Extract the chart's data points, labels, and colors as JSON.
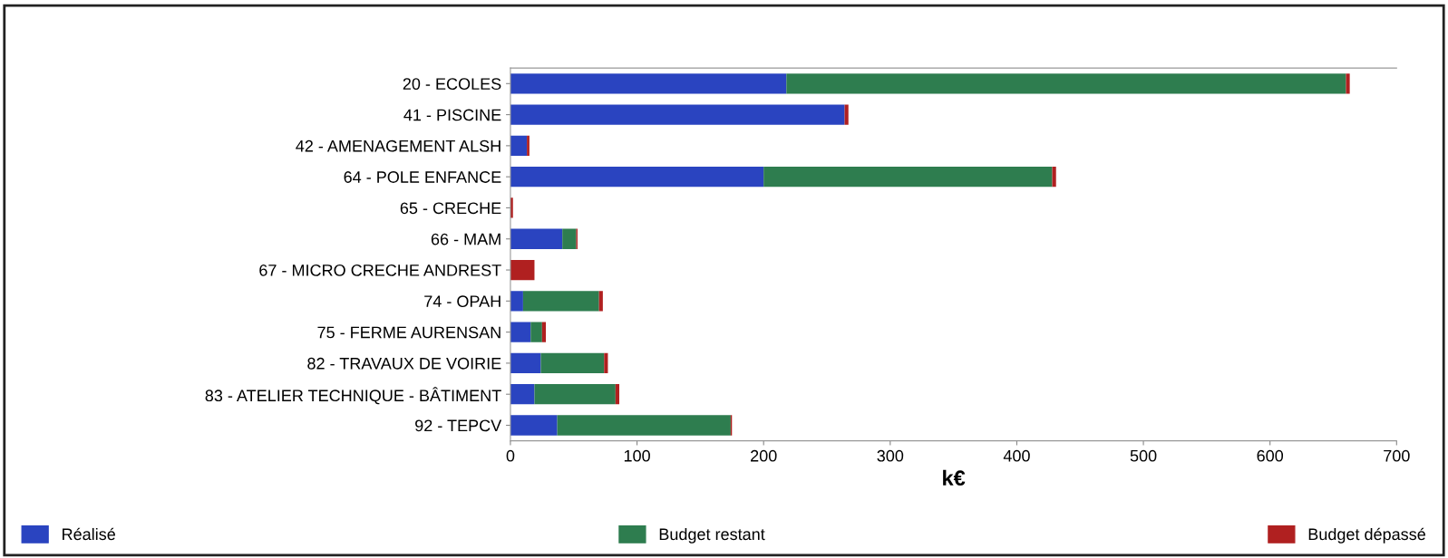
{
  "chart_data": {
    "type": "bar",
    "orientation": "horizontal",
    "stacked": true,
    "xlabel": "k€",
    "categories": [
      "20 - ECOLES",
      "41 - PISCINE",
      "42 - AMENAGEMENT ALSH",
      "64 - POLE ENFANCE",
      "65 - CRECHE",
      "66 - MAM",
      "67 - MICRO CRECHE ANDREST",
      "74 - OPAH",
      "75 - FERME AURENSAN",
      "82 - TRAVAUX DE VOIRIE",
      "83 - ATELIER TECHNIQUE - BÂTIMENT",
      "92 - TEPCV"
    ],
    "series": [
      {
        "name": "Réalisé",
        "color": "#2a44c0",
        "values": [
          218,
          264,
          13,
          200,
          0,
          41,
          0,
          10,
          16,
          24,
          19,
          37
        ]
      },
      {
        "name": "Budget restant",
        "color": "#2e7d4f",
        "values": [
          442,
          0,
          0,
          228,
          0,
          11,
          0,
          60,
          9,
          50,
          64,
          137
        ]
      },
      {
        "name": "Budget dépassé",
        "color": "#b02020",
        "values": [
          3,
          3,
          2,
          3,
          2,
          1,
          19,
          3,
          3,
          3,
          3,
          1
        ]
      }
    ],
    "xlim": [
      0,
      700
    ],
    "xticks": [
      0,
      100,
      200,
      300,
      400,
      500,
      600,
      700
    ],
    "grid": false,
    "legend": "bottom"
  }
}
